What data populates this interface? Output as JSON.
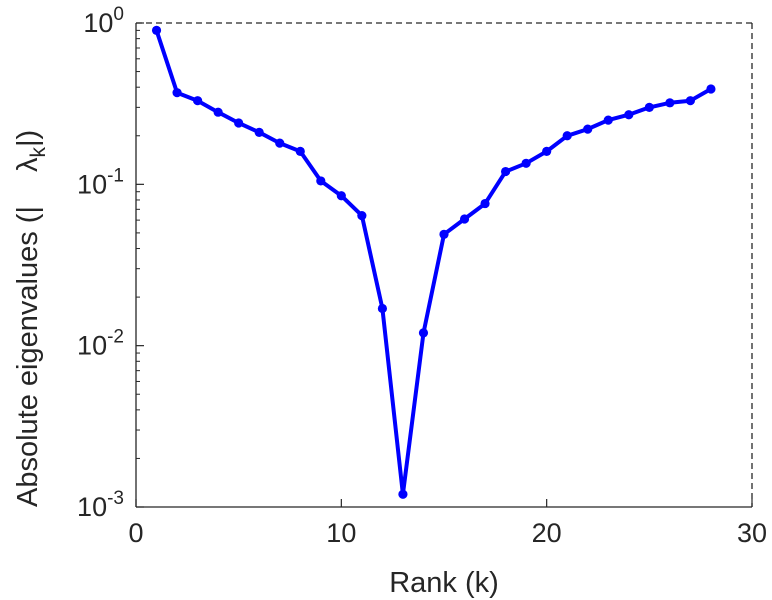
{
  "chart_data": {
    "type": "line",
    "xlabel": "Rank (k)",
    "ylabel": {
      "main": "Absolute eigenvalues (|",
      "lambda": "λ",
      "subscript": "k",
      "close": "|)"
    },
    "y_scale": "log",
    "xlim": [
      0,
      30
    ],
    "ylim": [
      0.001,
      1
    ],
    "x_ticks": [
      0,
      10,
      20,
      30
    ],
    "y_ticks": [
      {
        "value": 1,
        "base": "10",
        "exp": "0"
      },
      {
        "value": 0.1,
        "base": "10",
        "exp": "-1"
      },
      {
        "value": 0.01,
        "base": "10",
        "exp": "-2"
      },
      {
        "value": 0.001,
        "base": "10",
        "exp": "-3"
      }
    ],
    "grid": false,
    "series": [
      {
        "color": "#0000ff",
        "marker": "circle",
        "x": [
          1,
          2,
          3,
          4,
          5,
          6,
          7,
          8,
          9,
          10,
          11,
          12,
          13,
          14,
          15,
          16,
          17,
          18,
          19,
          20,
          21,
          22,
          23,
          24,
          25,
          26,
          27,
          28
        ],
        "y": [
          0.9,
          0.37,
          0.33,
          0.28,
          0.24,
          0.21,
          0.18,
          0.16,
          0.105,
          0.085,
          0.064,
          0.017,
          0.0012,
          0.012,
          0.049,
          0.061,
          0.076,
          0.12,
          0.135,
          0.16,
          0.2,
          0.22,
          0.25,
          0.27,
          0.3,
          0.32,
          0.33,
          0.39
        ]
      }
    ]
  }
}
